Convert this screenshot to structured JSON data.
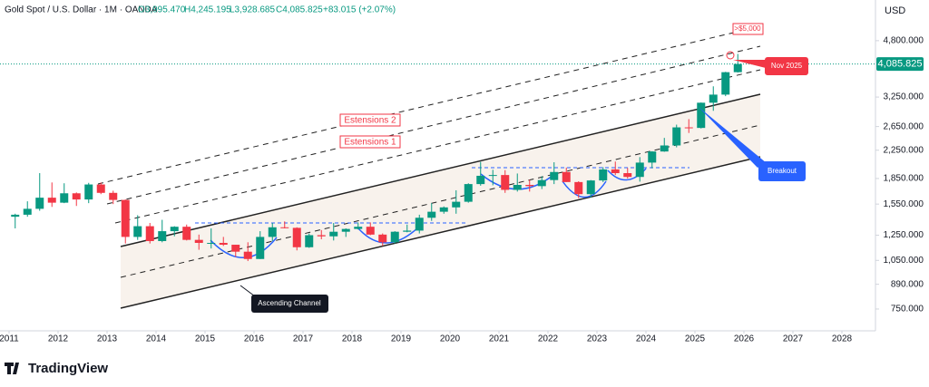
{
  "chart_data": {
    "type": "candlestick",
    "header": {
      "symbol": "Gold Spot / U.S. Dollar · 1M · OANDA",
      "open": "O3,995.470",
      "high": "H4,245.195",
      "low": "L3,928.685",
      "close": "C4,085.825",
      "change": "+83.015 (+2.07%)"
    },
    "currency": "USD",
    "brand": "TradingView",
    "annotations": {
      "target": ">$5,000",
      "extension_2": "Estensions 2",
      "extension_1": "Estensions 1",
      "channel": "Ascending Channel",
      "breakout": "Breakout",
      "date": "Nov 2025"
    },
    "last_price": {
      "value": 4085.825,
      "label": "4,085.825"
    },
    "log_scale": true,
    "up_color": "#089981",
    "down_color": "#f23645",
    "x": [
      2011.125,
      2011.375,
      2011.625,
      2011.875,
      2012.125,
      2012.375,
      2012.625,
      2012.875,
      2013.125,
      2013.375,
      2013.625,
      2013.875,
      2014.125,
      2014.375,
      2014.625,
      2014.875,
      2015.125,
      2015.375,
      2015.625,
      2015.875,
      2016.125,
      2016.375,
      2016.625,
      2016.875,
      2017.125,
      2017.375,
      2017.625,
      2017.875,
      2018.125,
      2018.375,
      2018.625,
      2018.875,
      2019.125,
      2019.375,
      2019.625,
      2019.875,
      2020.125,
      2020.375,
      2020.625,
      2020.875,
      2021.125,
      2021.375,
      2021.625,
      2021.875,
      2022.125,
      2022.375,
      2022.625,
      2022.875,
      2023.125,
      2023.375,
      2023.625,
      2023.875,
      2024.125,
      2024.375,
      2024.625,
      2024.875,
      2025.125,
      2025.375,
      2025.625,
      2025.875
    ],
    "open": [
      1420,
      1440,
      1500,
      1620,
      1565,
      1670,
      1600,
      1775,
      1675,
      1595,
      1235,
      1330,
      1200,
      1285,
      1325,
      1210,
      1185,
      1185,
      1170,
      1115,
      1060,
      1235,
      1320,
      1315,
      1150,
      1250,
      1240,
      1280,
      1305,
      1325,
      1255,
      1190,
      1280,
      1290,
      1410,
      1470,
      1515,
      1575,
      1780,
      1885,
      1895,
      1710,
      1770,
      1755,
      1830,
      1935,
      1805,
      1660,
      1825,
      1970,
      1920,
      1870,
      2065,
      2230,
      2325,
      2635,
      2625,
      3125,
      3305,
      3860
    ],
    "high": [
      1450,
      1580,
      1920,
      1800,
      1790,
      1680,
      1795,
      1800,
      1700,
      1600,
      1435,
      1360,
      1390,
      1330,
      1345,
      1255,
      1310,
      1235,
      1170,
      1190,
      1285,
      1360,
      1375,
      1320,
      1265,
      1295,
      1360,
      1310,
      1365,
      1365,
      1265,
      1285,
      1345,
      1440,
      1560,
      1525,
      1705,
      1790,
      2075,
      1965,
      1960,
      1915,
      1835,
      1880,
      2070,
      1995,
      1815,
      1830,
      2000,
      2080,
      1990,
      2145,
      2235,
      2450,
      2685,
      2790,
      3130,
      3500,
      3870,
      4380
    ],
    "low": [
      1310,
      1420,
      1480,
      1520,
      1560,
      1530,
      1560,
      1660,
      1550,
      1180,
      1210,
      1180,
      1190,
      1240,
      1205,
      1130,
      1140,
      1160,
      1075,
      1045,
      1060,
      1200,
      1310,
      1125,
      1145,
      1215,
      1205,
      1235,
      1300,
      1250,
      1160,
      1180,
      1275,
      1265,
      1380,
      1450,
      1450,
      1565,
      1760,
      1765,
      1675,
      1690,
      1690,
      1720,
      1780,
      1805,
      1615,
      1620,
      1805,
      1895,
      1850,
      1810,
      1985,
      2225,
      2295,
      2535,
      2615,
      2955,
      3270,
      3850
    ],
    "close": [
      1440,
      1500,
      1620,
      1565,
      1670,
      1600,
      1775,
      1675,
      1595,
      1235,
      1330,
      1200,
      1285,
      1325,
      1210,
      1185,
      1185,
      1170,
      1115,
      1060,
      1235,
      1320,
      1315,
      1150,
      1250,
      1240,
      1280,
      1305,
      1325,
      1255,
      1190,
      1280,
      1290,
      1410,
      1470,
      1515,
      1575,
      1780,
      1885,
      1895,
      1710,
      1770,
      1755,
      1830,
      1935,
      1805,
      1660,
      1825,
      1970,
      1920,
      1870,
      2065,
      2230,
      2325,
      2635,
      2625,
      3125,
      3305,
      3860,
      4085.825
    ],
    "xlim": [
      2010.815,
      2028.685
    ],
    "xticks": [
      2011,
      2012,
      2013,
      2014,
      2015,
      2016,
      2017,
      2018,
      2019,
      2020,
      2021,
      2022,
      2023,
      2024,
      2025,
      2026,
      2027,
      2028
    ],
    "ylim": [
      645,
      6360
    ],
    "yticks": [
      {
        "value": 750,
        "label": "750.000"
      },
      {
        "value": 890,
        "label": "890.000"
      },
      {
        "value": 1050,
        "label": "1,050.000"
      },
      {
        "value": 1250,
        "label": "1,250.000"
      },
      {
        "value": 1550,
        "label": "1,550.000"
      },
      {
        "value": 1850,
        "label": "1,850.000"
      },
      {
        "value": 2250,
        "label": "2,250.000"
      },
      {
        "value": 2650,
        "label": "2,650.000"
      },
      {
        "value": 3250,
        "label": "3,250.000"
      },
      {
        "value": 4800,
        "label": "4,800.000"
      }
    ]
  }
}
